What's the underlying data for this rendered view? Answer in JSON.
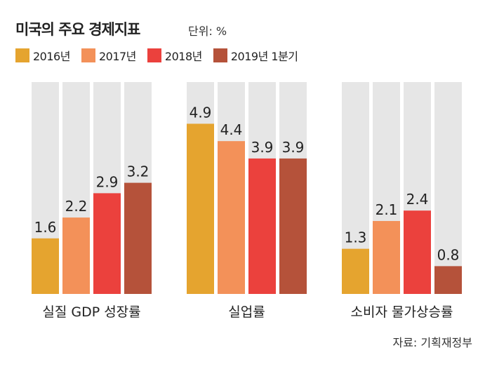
{
  "title": "미국의 주요 경제지표",
  "unit": "단위: %",
  "source": "자료: 기획재정부",
  "chart_data": {
    "type": "bar",
    "categories": [
      "실질 GDP 성장률",
      "실업률",
      "소비자 물가상승률"
    ],
    "series": [
      {
        "name": "2016년",
        "color": "#E5A42F",
        "values": [
          1.6,
          4.9,
          1.3
        ]
      },
      {
        "name": "2017년",
        "color": "#F39159",
        "values": [
          2.2,
          4.4,
          2.1
        ]
      },
      {
        "name": "2018년",
        "color": "#EB413D",
        "values": [
          2.9,
          3.9,
          2.4
        ]
      },
      {
        "name": "2019년 1분기",
        "color": "#B5523A",
        "values": [
          3.2,
          3.9,
          0.8
        ]
      }
    ],
    "value_labels": [
      [
        "1.6",
        "2.2",
        "2.9",
        "3.2"
      ],
      [
        "4.9",
        "4.4",
        "3.9",
        "3.9"
      ],
      [
        "1.3",
        "2.1",
        "2.4",
        "0.8"
      ]
    ],
    "ylim": [
      0,
      6.1
    ],
    "background_bar_color": "#E6E6E6",
    "legend_position": "top-left"
  }
}
